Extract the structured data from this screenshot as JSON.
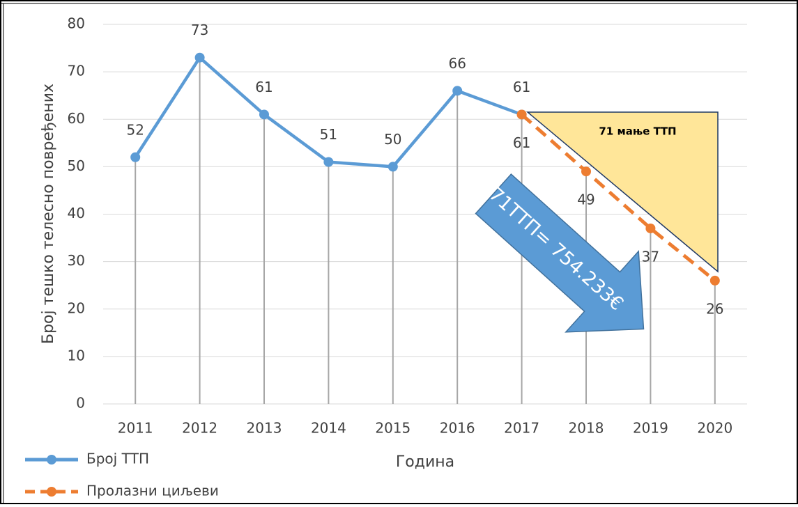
{
  "chart_data": {
    "type": "line",
    "y_label": "Број тешко телесно повређених",
    "x_label": "Година",
    "categories": [
      "2011",
      "2012",
      "2013",
      "2014",
      "2015",
      "2016",
      "2017",
      "2018",
      "2019",
      "2020"
    ],
    "series": [
      {
        "name": "Број ТТП",
        "color": "#5b9bd5",
        "dash": false,
        "label_side": "above",
        "values": [
          52,
          73,
          61,
          51,
          50,
          66,
          61,
          null,
          null,
          null
        ]
      },
      {
        "name": "Пролазни циљеви",
        "color": "#ed7d31",
        "dash": true,
        "label_side": "below",
        "values": [
          null,
          null,
          null,
          null,
          null,
          null,
          61,
          49,
          37,
          26
        ]
      }
    ],
    "ylim": [
      0,
      80
    ],
    "yticks": [
      0,
      10,
      20,
      30,
      40,
      50,
      60,
      70,
      80
    ],
    "grid": true,
    "annotations": [
      "71 мање ТТП",
      "71ТТП= 754.233€"
    ]
  }
}
